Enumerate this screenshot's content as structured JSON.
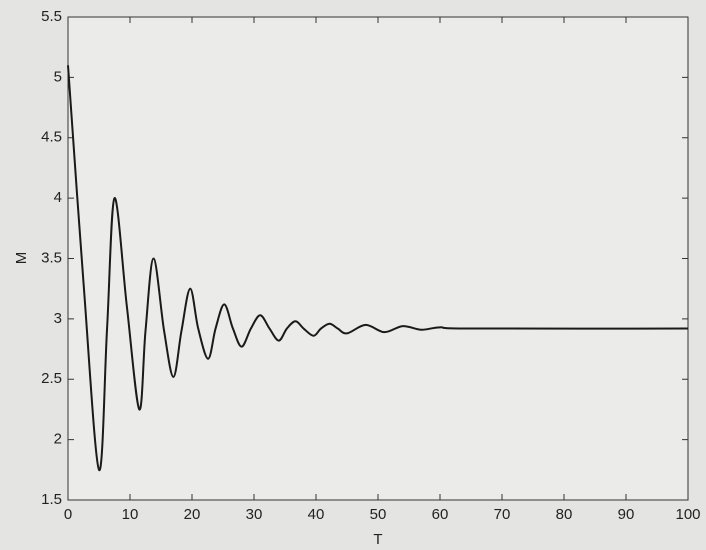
{
  "chart_data": {
    "type": "line",
    "x_label": "T",
    "y_label": "M",
    "x": [
      0,
      2.5,
      5,
      6.3,
      7.5,
      9.5,
      11.5,
      12.5,
      13.8,
      15.5,
      17,
      18.3,
      19.7,
      21,
      22.6,
      23.8,
      25.2,
      26.6,
      28,
      29.5,
      31,
      32.5,
      34,
      35.3,
      36.7,
      38,
      39.6,
      40.8,
      42.2,
      43.5,
      45,
      48,
      51,
      54,
      57,
      60,
      65,
      100
    ],
    "series": [
      {
        "color": "#1a1a1a",
        "values": [
          5.1,
          3.3,
          1.75,
          2.92,
          4.0,
          3.1,
          2.25,
          2.9,
          3.5,
          2.9,
          2.52,
          2.9,
          3.25,
          2.92,
          2.67,
          2.92,
          3.12,
          2.92,
          2.77,
          2.92,
          3.03,
          2.92,
          2.82,
          2.92,
          2.98,
          2.92,
          2.86,
          2.92,
          2.96,
          2.92,
          2.88,
          2.95,
          2.89,
          2.94,
          2.91,
          2.93,
          2.92,
          2.92
        ]
      }
    ],
    "xlim": [
      0,
      100
    ],
    "xticks": [
      0,
      10,
      20,
      30,
      40,
      50,
      60,
      70,
      80,
      90,
      100
    ],
    "ylim": [
      1.5,
      5.5
    ],
    "yticks": [
      1.5,
      2,
      2.5,
      3,
      3.5,
      4,
      4.5,
      5,
      5.5
    ]
  }
}
